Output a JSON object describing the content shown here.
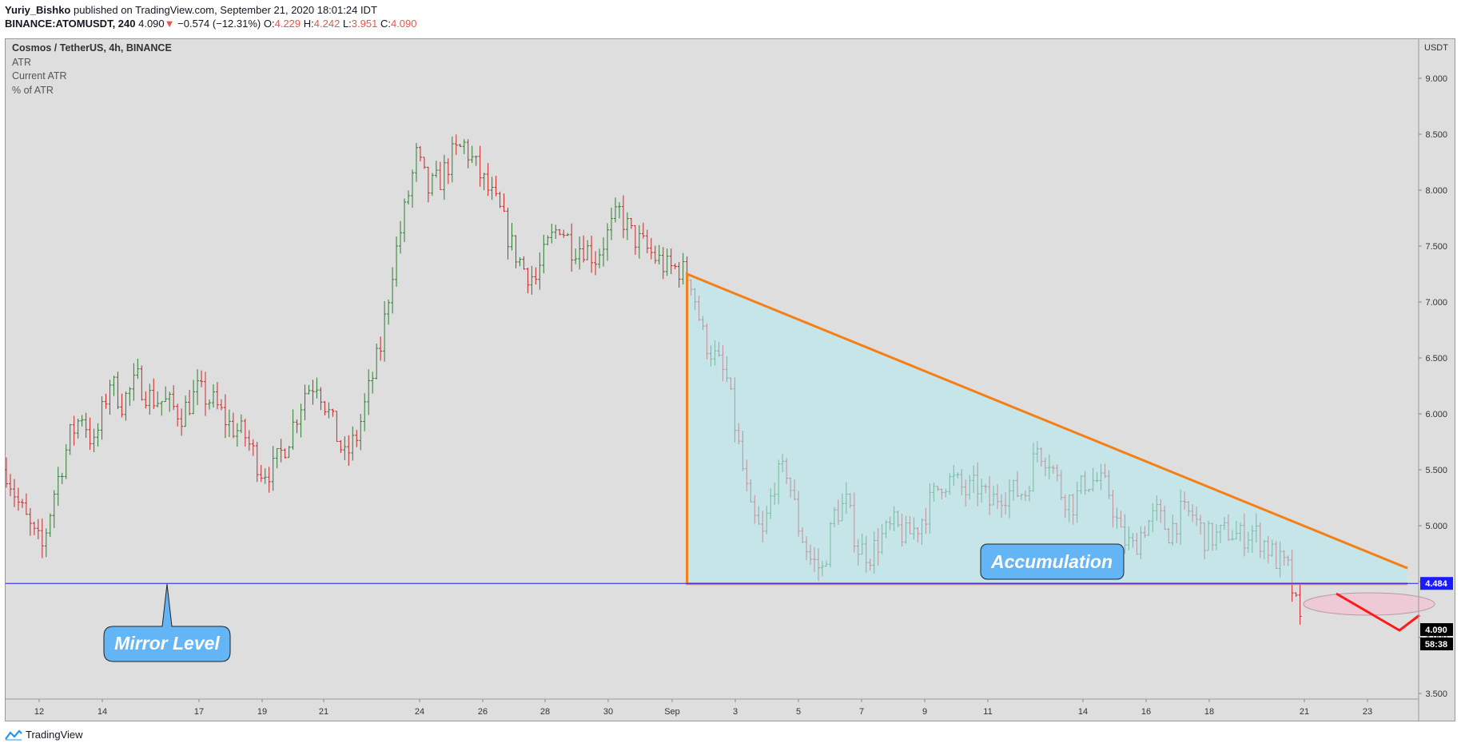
{
  "header": {
    "author": "Yuriy_Bishko",
    "published": " published on TradingView.com, September 21, 2020 18:01:24 IDT",
    "symbol": "BINANCE:ATOMUSDT, 240",
    "last": "4.090",
    "arrow": "▼",
    "change": "−0.574 (−12.31%)",
    "o_label": "O:",
    "o": "4.229",
    "h_label": "H:",
    "h": "4.242",
    "l_label": "L:",
    "l": "3.951",
    "c_label": "C:",
    "c": "4.090"
  },
  "legend": {
    "symbol": "Cosmos / TetherUS, 4h, BINANCE",
    "indicators": [
      "ATR",
      "Current ATR",
      "% of ATR"
    ]
  },
  "footer": {
    "brand": "TradingView"
  },
  "colors": {
    "background": "#dedede",
    "up_bar": "#2e7d32",
    "down_bar": "#c62828",
    "triangle_stroke": "#f57f17",
    "triangle_fill": "#b2ebf2",
    "mirror_line": "#1a1aff",
    "callout_fill": "#64b5f6",
    "zigzag": "#ff1a1a",
    "ellipse_fill": "#f8bbd0"
  },
  "chart_data": {
    "type": "ohlc",
    "currency": "USDT",
    "ylim": [
      3.45,
      9.35
    ],
    "y_ticks": [
      "9.000",
      "8.500",
      "8.000",
      "7.500",
      "7.000",
      "6.500",
      "6.000",
      "5.500",
      "5.000",
      "4.500",
      "4.000",
      "3.500"
    ],
    "x_tick_labels": [
      "12",
      "14",
      "17",
      "19",
      "21",
      "24",
      "26",
      "28",
      "30",
      "Sep",
      "3",
      "5",
      "7",
      "9",
      "11",
      "14",
      "16",
      "18",
      "21",
      "23"
    ],
    "close_path": [
      [
        0,
        5.5
      ],
      [
        3,
        5.2
      ],
      [
        7,
        4.9
      ],
      [
        9,
        4.8
      ],
      [
        12,
        5.3
      ],
      [
        16,
        5.8
      ],
      [
        19,
        6.0
      ],
      [
        22,
        5.7
      ],
      [
        26,
        6.3
      ],
      [
        29,
        6.1
      ],
      [
        33,
        6.3
      ],
      [
        36,
        6.15
      ],
      [
        40,
        6.1
      ],
      [
        44,
        6.0
      ],
      [
        48,
        6.2
      ],
      [
        52,
        6.1
      ],
      [
        56,
        5.9
      ],
      [
        60,
        5.8
      ],
      [
        64,
        5.5
      ],
      [
        67,
        5.5
      ],
      [
        71,
        5.8
      ],
      [
        75,
        6.2
      ],
      [
        78,
        6.3
      ],
      [
        82,
        5.9
      ],
      [
        85,
        5.6
      ],
      [
        88,
        5.8
      ],
      [
        91,
        6.2
      ],
      [
        94,
        6.6
      ],
      [
        97,
        7.3
      ],
      [
        100,
        7.8
      ],
      [
        103,
        8.3
      ],
      [
        106,
        8.0
      ],
      [
        109,
        8.1
      ],
      [
        112,
        8.3
      ],
      [
        115,
        8.4
      ],
      [
        118,
        8.2
      ],
      [
        121,
        8.0
      ],
      [
        124,
        7.8
      ],
      [
        127,
        7.5
      ],
      [
        130,
        7.3
      ],
      [
        133,
        7.2
      ],
      [
        136,
        7.5
      ],
      [
        139,
        7.7
      ],
      [
        142,
        7.5
      ],
      [
        145,
        7.5
      ],
      [
        148,
        7.4
      ],
      [
        151,
        7.6
      ],
      [
        154,
        7.8
      ],
      [
        157,
        7.6
      ],
      [
        160,
        7.5
      ],
      [
        163,
        7.4
      ],
      [
        166,
        7.3
      ],
      [
        169,
        7.3
      ],
      [
        172,
        7.2
      ],
      [
        175,
        6.7
      ],
      [
        178,
        6.5
      ],
      [
        181,
        6.3
      ],
      [
        184,
        5.7
      ],
      [
        187,
        5.1
      ],
      [
        190,
        4.9
      ],
      [
        193,
        5.4
      ],
      [
        196,
        5.5
      ],
      [
        199,
        5.0
      ],
      [
        202,
        4.7
      ],
      [
        205,
        4.6
      ],
      [
        208,
        5.1
      ],
      [
        211,
        5.2
      ],
      [
        214,
        4.8
      ],
      [
        217,
        4.75
      ],
      [
        220,
        4.9
      ],
      [
        223,
        5.0
      ],
      [
        226,
        4.9
      ],
      [
        229,
        5.0
      ],
      [
        232,
        5.2
      ],
      [
        235,
        5.4
      ],
      [
        238,
        5.4
      ],
      [
        241,
        5.3
      ],
      [
        244,
        5.35
      ],
      [
        247,
        5.2
      ],
      [
        250,
        5.3
      ],
      [
        253,
        5.3
      ],
      [
        256,
        5.3
      ],
      [
        259,
        5.7
      ],
      [
        262,
        5.6
      ],
      [
        265,
        5.3
      ],
      [
        268,
        5.2
      ],
      [
        271,
        5.4
      ],
      [
        274,
        5.4
      ],
      [
        277,
        5.3
      ],
      [
        280,
        4.9
      ],
      [
        283,
        4.8
      ],
      [
        286,
        5.0
      ],
      [
        289,
        5.1
      ],
      [
        292,
        4.95
      ],
      [
        295,
        5.1
      ],
      [
        298,
        5.1
      ],
      [
        301,
        4.9
      ],
      [
        304,
        4.9
      ],
      [
        307,
        4.95
      ],
      [
        310,
        4.9
      ],
      [
        313,
        4.95
      ],
      [
        316,
        4.85
      ],
      [
        319,
        4.7
      ],
      [
        322,
        4.6
      ],
      [
        325,
        4.1
      ]
    ],
    "drawings": {
      "descending_triangle": {
        "top_left": [
          171,
          7.25
        ],
        "bottom_left": [
          171,
          4.48
        ],
        "right": [
          352,
          4.48
        ],
        "top_right": [
          352,
          4.62
        ]
      },
      "mirror_level": 4.484,
      "mirror_label": "Mirror Level",
      "accumulation_label": "Accumulation",
      "price_badges": [
        "4.484",
        "4.090",
        "58:38"
      ]
    }
  }
}
